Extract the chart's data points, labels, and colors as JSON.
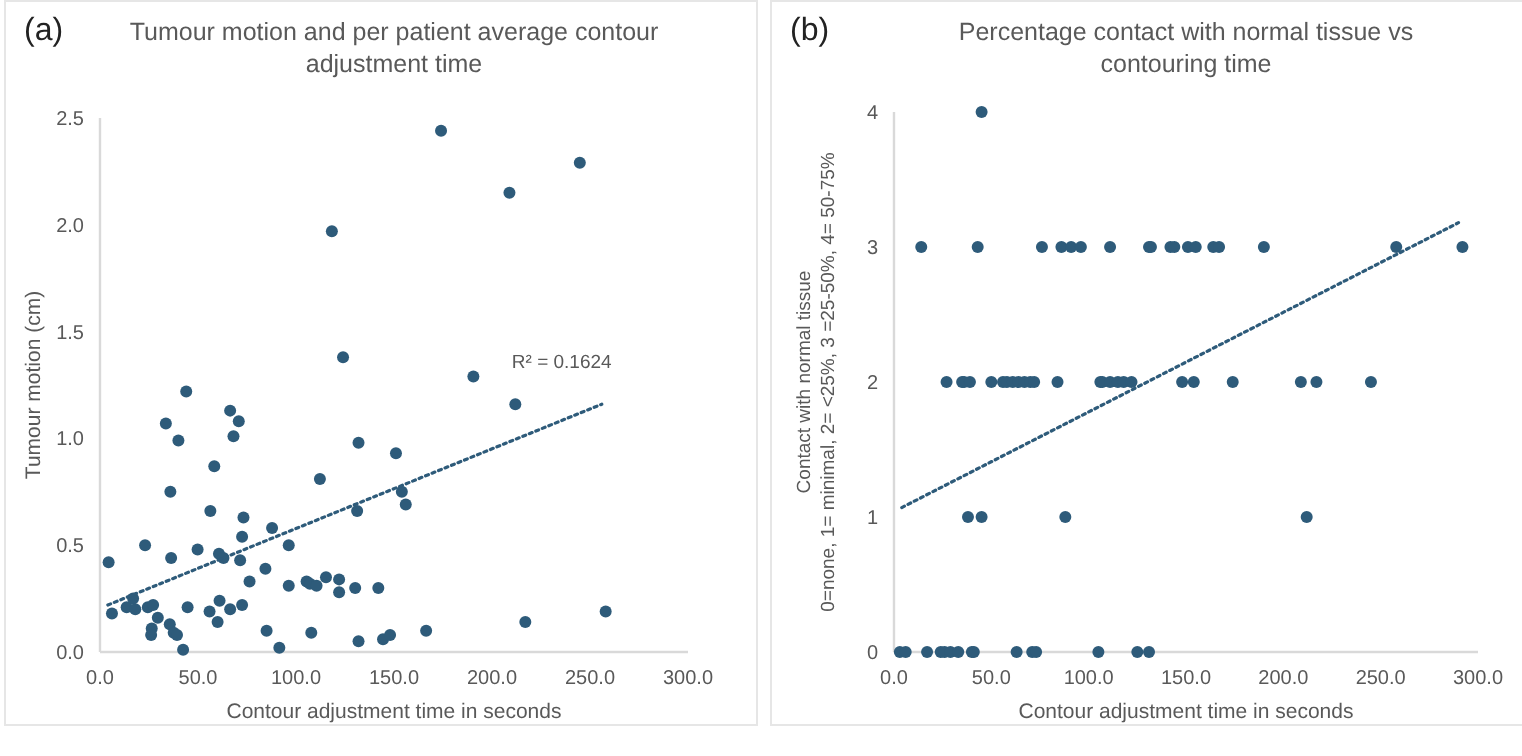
{
  "chart_data": [
    {
      "type": "scatter",
      "title": "Tumour motion and per patient average contour adjustment time",
      "xlabel": "Contour adjustment time in seconds",
      "ylabel": "Tumour motion (cm)",
      "annotations": [
        "(a)",
        "R² = 0.1624"
      ],
      "xlim": [
        0,
        300
      ],
      "xticks": [
        {
          "value": 0,
          "label": "0.0"
        },
        {
          "value": 50,
          "label": "50.0"
        },
        {
          "value": 100,
          "label": "100.0"
        },
        {
          "value": 150,
          "label": "150.0"
        },
        {
          "value": 200,
          "label": "200.0"
        },
        {
          "value": 250,
          "label": "250.0"
        },
        {
          "value": 300,
          "label": "300.0"
        }
      ],
      "ylim": [
        0,
        2.5
      ],
      "yticks": [
        {
          "value": 0,
          "label": "0.0"
        },
        {
          "value": 0.5,
          "label": "0.5"
        },
        {
          "value": 1,
          "label": "1.0"
        },
        {
          "value": 1.5,
          "label": "1.5"
        },
        {
          "value": 2,
          "label": "2.0"
        },
        {
          "value": 2.5,
          "label": "2.5"
        }
      ],
      "grid": false,
      "series": [
        {
          "color": "#2e5b7a",
          "marker": "circle",
          "x": [
            4.4,
            6.1,
            13.6,
            16.9,
            18,
            23,
            24.4,
            27.1,
            26.4,
            26.1,
            29.5,
            33.6,
            35.9,
            36.3,
            35.6,
            37.6,
            39.3,
            40,
            42.4,
            44,
            44.7,
            49.8,
            55.9,
            56.3,
            58.3,
            60,
            60.7,
            61,
            63,
            66.4,
            66.4,
            68.1,
            70.8,
            71.5,
            72.5,
            72.5,
            73.2,
            76.3,
            84.4,
            85,
            87.8,
            91.5,
            96.3,
            96.3,
            105.4,
            107.1,
            107.8,
            110.5,
            112.2,
            115.3,
            122,
            122,
            130.2,
            131.2,
            131.9,
            131.9,
            142,
            144.4,
            148,
            151,
            154,
            156,
            166.4,
            190.5,
            211.9,
            217,
            258,
            174,
            244.8,
            208.9,
            118.3,
            124
          ],
          "values": [
            0.42,
            0.18,
            0.21,
            0.25,
            0.2,
            0.5,
            0.21,
            0.22,
            0.11,
            0.08,
            0.16,
            1.07,
            0.75,
            0.44,
            0.13,
            0.09,
            0.08,
            0.99,
            0.01,
            1.22,
            0.21,
            0.48,
            0.19,
            0.66,
            0.87,
            0.14,
            0.46,
            0.24,
            0.44,
            1.13,
            0.2,
            1.01,
            1.08,
            0.43,
            0.22,
            0.54,
            0.63,
            0.33,
            0.39,
            0.1,
            0.58,
            0.02,
            0.31,
            0.5,
            0.33,
            0.32,
            0.09,
            0.31,
            0.81,
            0.35,
            0.34,
            0.28,
            0.3,
            0.66,
            0.98,
            0.05,
            0.3,
            0.06,
            0.08,
            0.93,
            0.75,
            0.69,
            0.1,
            1.29,
            1.16,
            0.14,
            0.19,
            2.44,
            2.29,
            2.15,
            1.97,
            1.38
          ]
        },
        {
          "type": "line",
          "color": "#2e5b7a",
          "line_style": "dotted",
          "marker": "none",
          "x": [
            4,
            256
          ],
          "values": [
            0.22,
            1.16
          ]
        }
      ]
    },
    {
      "type": "scatter",
      "title": "Percentage contact with normal tissue vs contouring time",
      "xlabel": "Contour adjustment time in seconds",
      "ylabel": "Contact with normal tissue\n0=none, 1= minimal, 2= <25%, 3 =25-50%, 4= 50-75%",
      "annotations": [
        "(b)"
      ],
      "xlim": [
        0,
        300
      ],
      "xticks": [
        {
          "value": 0,
          "label": "0.0"
        },
        {
          "value": 50,
          "label": "50.0"
        },
        {
          "value": 100,
          "label": "100.0"
        },
        {
          "value": 150,
          "label": "150.0"
        },
        {
          "value": 200,
          "label": "200.0"
        },
        {
          "value": 250,
          "label": "250.0"
        },
        {
          "value": 300,
          "label": "300.0"
        }
      ],
      "ylim": [
        0,
        4
      ],
      "yticks": [
        0,
        1,
        2,
        3,
        4
      ],
      "grid": false,
      "series": [
        {
          "color": "#2e5b7a",
          "marker": "circle",
          "x": [
            3,
            6,
            17,
            24,
            26,
            29,
            33,
            40,
            41,
            63,
            71,
            73,
            105,
            125,
            131,
            38,
            45,
            88,
            212,
            27,
            35,
            36,
            39,
            50,
            56,
            58,
            61,
            64,
            67,
            70,
            72,
            84,
            106,
            107,
            111,
            115,
            118,
            122,
            148,
            154,
            174,
            209,
            217,
            245,
            14,
            43,
            76,
            86,
            91,
            96,
            111,
            131,
            132,
            142,
            144,
            151,
            155,
            164,
            167,
            190,
            258,
            292,
            45
          ],
          "values": [
            0,
            0,
            0,
            0,
            0,
            0,
            0,
            0,
            0,
            0,
            0,
            0,
            0,
            0,
            0,
            1,
            1,
            1,
            1,
            2,
            2,
            2,
            2,
            2,
            2,
            2,
            2,
            2,
            2,
            2,
            2,
            2,
            2,
            2,
            2,
            2,
            2,
            2,
            2,
            2,
            2,
            2,
            2,
            2,
            3,
            3,
            3,
            3,
            3,
            3,
            3,
            3,
            3,
            3,
            3,
            3,
            3,
            3,
            3,
            3,
            3,
            3,
            4
          ]
        },
        {
          "type": "line",
          "color": "#2e5b7a",
          "line_style": "dotted",
          "marker": "none",
          "x": [
            4,
            290
          ],
          "values": [
            1.07,
            3.18
          ]
        }
      ]
    }
  ]
}
